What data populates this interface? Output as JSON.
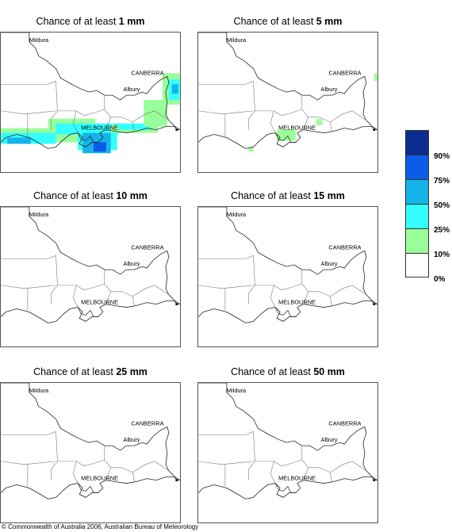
{
  "panels": [
    {
      "title_prefix": "Chance of at least ",
      "amount": "1 mm"
    },
    {
      "title_prefix": "Chance of at least ",
      "amount": "5 mm"
    },
    {
      "title_prefix": "Chance of at least ",
      "amount": "10 mm"
    },
    {
      "title_prefix": "Chance of at least ",
      "amount": "15 mm"
    },
    {
      "title_prefix": "Chance of at least ",
      "amount": "25 mm"
    },
    {
      "title_prefix": "Chance of at least ",
      "amount": "50 mm"
    }
  ],
  "cities": {
    "mildura": "Mildura",
    "canberra": "CANBERRA",
    "albury": "Albury",
    "melbourne": "MELBOURNE"
  },
  "legend": [
    {
      "label": "",
      "color": "#0a2d8f"
    },
    {
      "label": "90%",
      "color": "#0a5de8"
    },
    {
      "label": "75%",
      "color": "#14b4e8"
    },
    {
      "label": "50%",
      "color": "#33ffff"
    },
    {
      "label": "25%",
      "color": "#99ff99"
    },
    {
      "label": "10%",
      "color": "#ffffff"
    },
    {
      "label": "0%",
      "color": ""
    }
  ],
  "copyright": "© Commonwealth of Australia 2006, Australian Bureau of Meteorology"
}
